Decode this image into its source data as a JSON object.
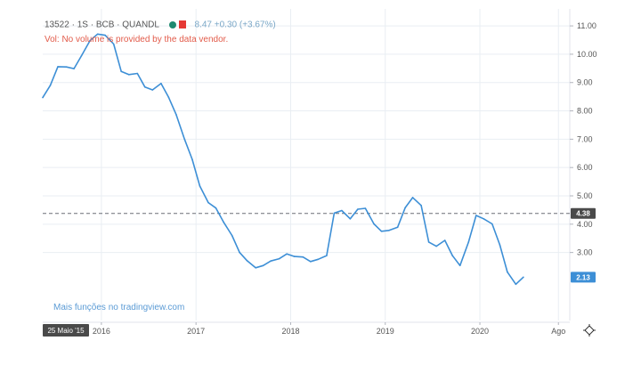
{
  "legend": {
    "symbol": "13522",
    "interval": "1S",
    "source": "BCB",
    "provider": "QUANDL",
    "last_value": "8.47",
    "change": "+0.30 (+3.67%)"
  },
  "warning": "Vol: No volume is provided by the data vendor.",
  "promo_link": "Mais funções no tradingview.com",
  "crosshair": {
    "date_label": "25 Maio '15",
    "price_label": "4.38",
    "price_value": 4.38
  },
  "last_price": {
    "label": "2.13",
    "value": 2.13
  },
  "colors": {
    "line": "#3d8fd6",
    "crosshair_tag": "#4a4a4a",
    "last_price_tag": "#3d8fd6",
    "grid": "#e9eef3",
    "axis": "#b2b5be",
    "warning": "#e25b4a"
  },
  "chart_data": {
    "type": "line",
    "title": "13522 · 1S · BCB · QUANDL",
    "xlabel": "",
    "ylabel": "",
    "ylim": [
      0.6,
      11.6
    ],
    "xlim": [
      2015.38,
      2020.95
    ],
    "grid": true,
    "x_ticks": [
      {
        "label": "2016",
        "value": 2016.0
      },
      {
        "label": "2017",
        "value": 2017.0
      },
      {
        "label": "2018",
        "value": 2018.0
      },
      {
        "label": "2019",
        "value": 2019.0
      },
      {
        "label": "2020",
        "value": 2020.0
      },
      {
        "label": "Ago",
        "value": 2020.83
      }
    ],
    "y_ticks": [
      {
        "label": "3.00",
        "value": 3.0
      },
      {
        "label": "4.00",
        "value": 4.0
      },
      {
        "label": "5.00",
        "value": 5.0
      },
      {
        "label": "6.00",
        "value": 6.0
      },
      {
        "label": "7.00",
        "value": 7.0
      },
      {
        "label": "8.00",
        "value": 8.0
      },
      {
        "label": "9.00",
        "value": 9.0
      },
      {
        "label": "10.00",
        "value": 10.0
      },
      {
        "label": "11.00",
        "value": 11.0
      }
    ],
    "series": [
      {
        "name": "13522",
        "x": [
          2015.38,
          2015.46,
          2015.54,
          2015.63,
          2015.71,
          2015.79,
          2015.88,
          2015.96,
          2016.04,
          2016.13,
          2016.21,
          2016.29,
          2016.38,
          2016.46,
          2016.54,
          2016.63,
          2016.71,
          2016.79,
          2016.88,
          2016.96,
          2017.04,
          2017.13,
          2017.21,
          2017.29,
          2017.38,
          2017.46,
          2017.54,
          2017.63,
          2017.71,
          2017.79,
          2017.88,
          2017.96,
          2018.04,
          2018.13,
          2018.21,
          2018.29,
          2018.38,
          2018.46,
          2018.54,
          2018.63,
          2018.71,
          2018.79,
          2018.88,
          2018.96,
          2019.04,
          2019.13,
          2019.21,
          2019.29,
          2019.38,
          2019.46,
          2019.54,
          2019.63,
          2019.71,
          2019.79,
          2019.88,
          2019.96,
          2020.04,
          2020.13,
          2020.21,
          2020.29,
          2020.38,
          2020.46
        ],
        "y": [
          8.47,
          8.9,
          9.56,
          9.55,
          9.49,
          9.95,
          10.48,
          10.71,
          10.67,
          10.36,
          9.39,
          9.28,
          9.32,
          8.84,
          8.74,
          8.97,
          8.48,
          7.87,
          6.99,
          6.29,
          5.35,
          4.76,
          4.57,
          4.08,
          3.6,
          3.0,
          2.71,
          2.46,
          2.54,
          2.7,
          2.78,
          2.95,
          2.86,
          2.84,
          2.68,
          2.76,
          2.89,
          4.39,
          4.48,
          4.19,
          4.53,
          4.56,
          4.01,
          3.75,
          3.78,
          3.89,
          4.58,
          4.94,
          4.66,
          3.37,
          3.22,
          3.43,
          2.89,
          2.54,
          3.37,
          4.31,
          4.19,
          4.01,
          3.27,
          2.31,
          1.88,
          2.13
        ]
      }
    ]
  }
}
